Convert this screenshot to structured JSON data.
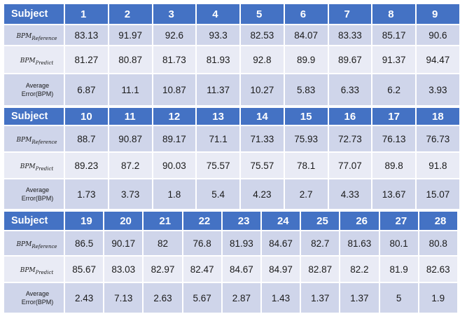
{
  "labels": {
    "subject": "Subject",
    "bpm_main": "BPM",
    "reference_sub": "Reference",
    "predict_sub": "Predict",
    "error_line1": "Average",
    "error_line2": "Error(BPM)"
  },
  "blocks": [
    {
      "subjects": [
        "1",
        "2",
        "3",
        "4",
        "5",
        "6",
        "7",
        "8",
        "9"
      ],
      "reference": [
        "83.13",
        "91.97",
        "92.6",
        "93.3",
        "82.53",
        "84.07",
        "83.33",
        "85.17",
        "90.6"
      ],
      "predict": [
        "81.27",
        "80.87",
        "81.73",
        "81.93",
        "92.8",
        "89.9",
        "89.67",
        "91.37",
        "94.47"
      ],
      "error": [
        "6.87",
        "11.1",
        "10.87",
        "11.37",
        "10.27",
        "5.83",
        "6.33",
        "6.2",
        "3.93"
      ]
    },
    {
      "subjects": [
        "10",
        "11",
        "12",
        "13",
        "14",
        "15",
        "16",
        "17",
        "18"
      ],
      "reference": [
        "88.7",
        "90.87",
        "89.17",
        "71.1",
        "71.33",
        "75.93",
        "72.73",
        "76.13",
        "76.73"
      ],
      "predict": [
        "89.23",
        "87.2",
        "90.03",
        "75.57",
        "75.57",
        "78.1",
        "77.07",
        "89.8",
        "91.8"
      ],
      "error": [
        "1.73",
        "3.73",
        "1.8",
        "5.4",
        "4.23",
        "2.7",
        "4.33",
        "13.67",
        "15.07"
      ]
    },
    {
      "subjects": [
        "19",
        "20",
        "21",
        "22",
        "23",
        "24",
        "25",
        "26",
        "27",
        "28"
      ],
      "reference": [
        "86.5",
        "90.17",
        "82",
        "76.8",
        "81.93",
        "84.67",
        "82.7",
        "81.63",
        "80.1",
        "80.8"
      ],
      "predict": [
        "85.67",
        "83.03",
        "82.97",
        "82.47",
        "84.67",
        "84.97",
        "82.87",
        "82.2",
        "81.9",
        "82.63"
      ],
      "error": [
        "2.43",
        "7.13",
        "2.63",
        "5.67",
        "2.87",
        "1.43",
        "1.37",
        "1.37",
        "5",
        "1.9"
      ]
    }
  ]
}
